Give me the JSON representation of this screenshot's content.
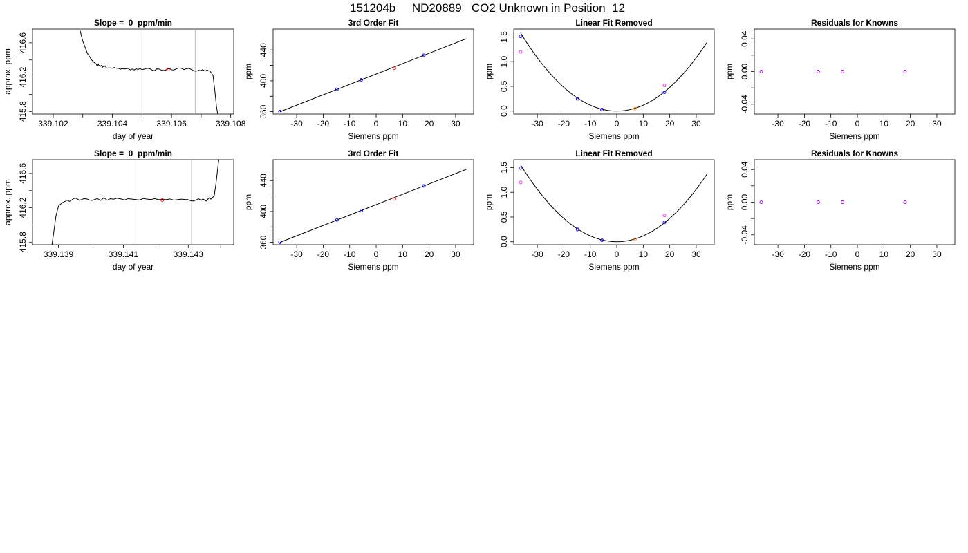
{
  "suptitle": "151204b     ND20889   CO2 Unknown in Position  12",
  "colors": {
    "known": "#0000ff",
    "residual_known": "#aa00ff",
    "unknown": "#ff0000",
    "linear_removed_known": "#ee22ee",
    "linear_removed_unknown": "#ff8800",
    "line": "#000000",
    "window": "#c0c0c0"
  },
  "chart_data": [
    {
      "type": "line",
      "title": "Slope =  0  ppm/min",
      "xlabel": "day of year",
      "ylabel": "approx. ppm",
      "xlim": [
        339.1013,
        339.1081
      ],
      "ylim": [
        415.77,
        416.76
      ],
      "xticks": [
        339.102,
        339.104,
        339.106,
        339.108
      ],
      "xtick_labels": [
        "339.102",
        "339.104",
        "339.106",
        "339.108"
      ],
      "xticks_minor": [
        339.103,
        339.105,
        339.107
      ],
      "yticks": [
        415.8,
        416.2,
        416.6
      ],
      "ytick_labels": [
        "415.8",
        "416.2",
        "416.6"
      ],
      "yticks_minor": [
        416.0,
        416.4
      ],
      "window": [
        339.105,
        339.1068
      ],
      "trace": [
        [
          339.10288,
          416.78
        ],
        [
          339.103,
          416.62
        ],
        [
          339.10315,
          416.48
        ],
        [
          339.1033,
          416.4
        ],
        [
          339.10345,
          416.35
        ],
        [
          339.1036,
          416.33
        ],
        [
          339.1038,
          416.32
        ],
        [
          339.1042,
          416.31
        ],
        [
          339.1046,
          416.3
        ],
        [
          339.105,
          416.3
        ],
        [
          339.1055,
          416.29
        ],
        [
          339.106,
          416.29
        ],
        [
          339.1065,
          416.29
        ],
        [
          339.107,
          416.28
        ],
        [
          339.1073,
          416.27
        ],
        [
          339.1074,
          416.22
        ],
        [
          339.10746,
          416.05
        ],
        [
          339.10752,
          415.85
        ],
        [
          339.10756,
          415.77
        ]
      ],
      "unknown_point": [
        339.10588,
        416.29
      ]
    },
    {
      "type": "line",
      "title": "3rd Order Fit",
      "xlabel": "Siemens ppm",
      "ylabel": "ppm",
      "xlim": [
        -38.9,
        36.8
      ],
      "ylim": [
        357,
        467
      ],
      "xticks": [
        -30,
        -20,
        -10,
        0,
        10,
        20,
        30
      ],
      "xtick_labels": [
        "-30",
        "-20",
        "-10",
        "0",
        "10",
        "20",
        "30"
      ],
      "yticks": [
        360,
        400,
        440
      ],
      "ytick_labels": [
        "360",
        "400",
        "440"
      ],
      "yticks_minor": [
        380,
        420
      ],
      "fit_line": [
        [
          -36.3,
          360.0
        ],
        [
          34.0,
          454.5
        ]
      ],
      "knowns": [
        [
          -36.3,
          360.2
        ],
        [
          -14.8,
          389.0
        ],
        [
          -5.6,
          401.3
        ],
        [
          18.0,
          433.1
        ]
      ],
      "unknown_point": [
        6.9,
        416.3
      ]
    },
    {
      "type": "scatter",
      "title": "Linear Fit Removed",
      "xlabel": "Siemens ppm",
      "ylabel": "ppm",
      "xlim": [
        -38.9,
        36.8
      ],
      "ylim": [
        -0.06,
        1.66
      ],
      "xticks": [
        -30,
        -20,
        -10,
        0,
        10,
        20,
        30
      ],
      "xtick_labels": [
        "-30",
        "-20",
        "-10",
        "0",
        "10",
        "20",
        "30"
      ],
      "yticks": [
        0.0,
        0.5,
        1.0,
        1.5
      ],
      "ytick_labels": [
        "0.0",
        "0.5",
        "1.0",
        "1.5"
      ],
      "curve_coeffs": [
        0.0,
        0.0,
        0.0012,
        0.0
      ],
      "curve_range": [
        -36.3,
        34.0
      ],
      "knowns": [
        [
          -36.3,
          1.51
        ],
        [
          -14.8,
          0.25
        ],
        [
          -5.6,
          0.03
        ],
        [
          18.0,
          0.38
        ]
      ],
      "knowns_linear_removed": [
        [
          -36.3,
          1.2
        ],
        [
          -14.8,
          0.25
        ],
        [
          -5.6,
          0.03
        ],
        [
          18.0,
          0.52
        ]
      ],
      "unknown_point": [
        6.9,
        0.05
      ]
    },
    {
      "type": "scatter",
      "title": "Residuals for Knowns",
      "xlabel": "Siemens ppm",
      "ylabel": "ppm",
      "xlim": [
        -38.9,
        36.8
      ],
      "ylim": [
        -0.052,
        0.052
      ],
      "xticks": [
        -30,
        -20,
        -10,
        0,
        10,
        20,
        30
      ],
      "xtick_labels": [
        "-30",
        "-20",
        "-10",
        "0",
        "10",
        "20",
        "30"
      ],
      "yticks": [
        -0.04,
        0.0,
        0.04
      ],
      "ytick_labels": [
        "-0.04",
        "0.00",
        "0.04"
      ],
      "yticks_minor": [
        -0.02,
        0.02
      ],
      "residuals": [
        [
          -36.3,
          0.0
        ],
        [
          -14.8,
          0.0
        ],
        [
          -5.6,
          0.0
        ],
        [
          18.0,
          0.0
        ]
      ]
    },
    {
      "type": "line",
      "title": "Slope =  0  ppm/min",
      "xlabel": "day of year",
      "ylabel": "approx. ppm",
      "xlim": [
        339.1382,
        339.1444
      ],
      "ylim": [
        415.77,
        416.76
      ],
      "xticks": [
        339.139,
        339.141,
        339.143
      ],
      "xtick_labels": [
        "339.139",
        "339.141",
        "339.143"
      ],
      "xticks_minor": [
        339.14,
        339.142,
        339.144
      ],
      "yticks": [
        415.8,
        416.2,
        416.6
      ],
      "ytick_labels": [
        "415.8",
        "416.2",
        "416.6"
      ],
      "yticks_minor": [
        416.0,
        416.4
      ],
      "window": [
        339.1413,
        339.1431
      ],
      "trace": [
        [
          339.1388,
          415.77
        ],
        [
          339.13885,
          415.9
        ],
        [
          339.13892,
          416.1
        ],
        [
          339.139,
          416.22
        ],
        [
          339.13915,
          416.27
        ],
        [
          339.13935,
          416.29
        ],
        [
          339.1397,
          416.3
        ],
        [
          339.1402,
          416.3
        ],
        [
          339.1408,
          416.3
        ],
        [
          339.1415,
          416.3
        ],
        [
          339.1422,
          416.3
        ],
        [
          339.1429,
          416.29
        ],
        [
          339.1434,
          416.29
        ],
        [
          339.1437,
          416.3
        ],
        [
          339.1438,
          416.34
        ],
        [
          339.14386,
          416.5
        ],
        [
          339.14392,
          416.7
        ],
        [
          339.14395,
          416.78
        ]
      ],
      "unknown_point": [
        339.1422,
        416.29
      ]
    },
    {
      "type": "line",
      "title": "3rd Order Fit",
      "xlabel": "Siemens ppm",
      "ylabel": "ppm",
      "xlim": [
        -38.9,
        36.8
      ],
      "ylim": [
        357,
        467
      ],
      "xticks": [
        -30,
        -20,
        -10,
        0,
        10,
        20,
        30
      ],
      "xtick_labels": [
        "-30",
        "-20",
        "-10",
        "0",
        "10",
        "20",
        "30"
      ],
      "yticks": [
        360,
        400,
        440
      ],
      "ytick_labels": [
        "360",
        "400",
        "440"
      ],
      "yticks_minor": [
        380,
        420
      ],
      "fit_line": [
        [
          -36.3,
          360.0
        ],
        [
          34.0,
          454.5
        ]
      ],
      "knowns": [
        [
          -36.3,
          360.2
        ],
        [
          -14.8,
          389.0
        ],
        [
          -5.6,
          401.3
        ],
        [
          18.0,
          433.1
        ]
      ],
      "unknown_point": [
        6.9,
        416.3
      ]
    },
    {
      "type": "scatter",
      "title": "Linear Fit Removed",
      "xlabel": "Siemens ppm",
      "ylabel": "ppm",
      "xlim": [
        -38.9,
        36.8
      ],
      "ylim": [
        -0.06,
        1.66
      ],
      "xticks": [
        -30,
        -20,
        -10,
        0,
        10,
        20,
        30
      ],
      "xtick_labels": [
        "-30",
        "-20",
        "-10",
        "0",
        "10",
        "20",
        "30"
      ],
      "yticks": [
        0.0,
        0.5,
        1.0,
        1.5
      ],
      "ytick_labels": [
        "0.0",
        "0.5",
        "1.0",
        "1.5"
      ],
      "curve_coeffs": [
        0.0,
        0.0,
        0.00118,
        0.0
      ],
      "curve_range": [
        -36.3,
        34.0
      ],
      "knowns": [
        [
          -36.3,
          1.49
        ],
        [
          -14.8,
          0.25
        ],
        [
          -5.6,
          0.03
        ],
        [
          18.0,
          0.39
        ]
      ],
      "knowns_linear_removed": [
        [
          -36.3,
          1.2
        ],
        [
          -14.8,
          0.25
        ],
        [
          -5.6,
          0.03
        ],
        [
          18.0,
          0.53
        ]
      ],
      "unknown_point": [
        6.9,
        0.05
      ]
    },
    {
      "type": "scatter",
      "title": "Residuals for Knowns",
      "xlabel": "Siemens ppm",
      "ylabel": "ppm",
      "xlim": [
        -38.9,
        36.8
      ],
      "ylim": [
        -0.052,
        0.052
      ],
      "xticks": [
        -30,
        -20,
        -10,
        0,
        10,
        20,
        30
      ],
      "xtick_labels": [
        "-30",
        "-20",
        "-10",
        "0",
        "10",
        "20",
        "30"
      ],
      "yticks": [
        -0.04,
        0.0,
        0.04
      ],
      "ytick_labels": [
        "-0.04",
        "0.00",
        "0.04"
      ],
      "yticks_minor": [
        -0.02,
        0.02
      ],
      "residuals": [
        [
          -36.3,
          0.0
        ],
        [
          -14.8,
          0.0
        ],
        [
          -5.6,
          0.0
        ],
        [
          18.0,
          0.0
        ]
      ]
    }
  ]
}
